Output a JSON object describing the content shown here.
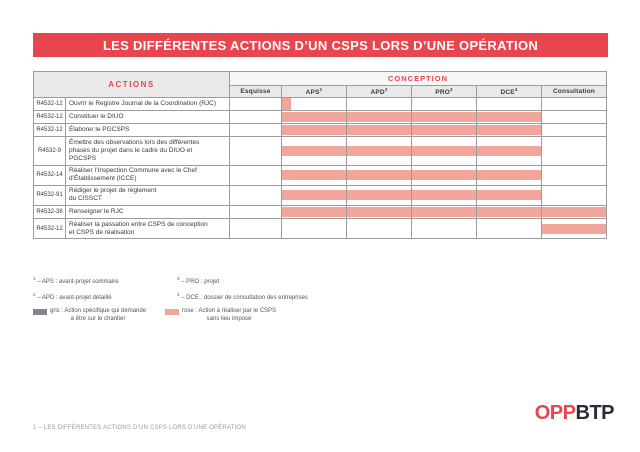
{
  "page": {
    "banner_title": "LES DIFFÉRENTES ACTIONS D’UN CSPS LORS D’UNE OPÉRATION",
    "footer_text": "1 – LES DIFFÉRENTES ACTIONS D’UN CSPS LORS D’UNE OPÉRATION",
    "logo": {
      "part1": "OPP",
      "part2": "BTP"
    }
  },
  "colors": {
    "accent_red": "#E8464F",
    "bar_pink": "#F2A59B",
    "legend_gray": "#85858D",
    "logo_dark": "#2B2A3A"
  },
  "table": {
    "actions_header": "ACTIONS",
    "conception_header": "CONCEPTION",
    "phase_columns": [
      {
        "label": "Esquisse",
        "sup": ""
      },
      {
        "label": "APS",
        "sup": "1"
      },
      {
        "label": "APD",
        "sup": "2"
      },
      {
        "label": "PRO",
        "sup": "3"
      },
      {
        "label": "DCE",
        "sup": "4"
      },
      {
        "label": "Consultation",
        "sup": ""
      }
    ],
    "rows": [
      {
        "code": "R4532-12",
        "action": "Ouvrir le Registre Journal de la Coordination (RJC)",
        "bar": {
          "from": 1,
          "to": 1,
          "small": true
        }
      },
      {
        "code": "R4532-12",
        "action": "Constituer le DIUO",
        "bar": {
          "from": 1,
          "to": 4
        }
      },
      {
        "code": "R4532-12",
        "action": "Élaborer le PGCSPS",
        "bar": {
          "from": 1,
          "to": 4
        }
      },
      {
        "code": "R4532-9",
        "action": "Émettre des observations lors des différentes\nphases du projet dans le cadre du DIUO et\nPGCSPS",
        "bar": {
          "from": 1,
          "to": 4
        }
      },
      {
        "code": "R4532-14",
        "action": "Réaliser l’Inspection Commune avec le Chef\nd’Établissement (ICCE)",
        "bar": {
          "from": 1,
          "to": 4
        }
      },
      {
        "code": "R4532-91",
        "action": "Rédiger le projet de règlement\ndu CISSCT",
        "bar": {
          "from": 1,
          "to": 4
        }
      },
      {
        "code": "R4532-38",
        "action": "Renseigner le RJC",
        "bar": {
          "from": 1,
          "to": 5
        }
      },
      {
        "code": "R4532-12",
        "action": "Réaliser la passation entre CSPS de conception\net CSPS de réalisation",
        "bar": {
          "from": 5,
          "to": 5
        }
      }
    ]
  },
  "footnotes": [
    {
      "sup": "1",
      "text": "– APS : avant-projet sommaire"
    },
    {
      "sup": "2",
      "text": "– APD : avant-projet détaillé"
    },
    {
      "sup": "3",
      "text": "– PRO : projet"
    },
    {
      "sup": "4",
      "text": "– DCE : dossier de consultation des entreprises"
    }
  ],
  "legend": [
    {
      "color_key": "legend_gray",
      "line1": "gris : Action spécifique qui demande",
      "line2": "à être sur le chantier"
    },
    {
      "color_key": "bar_pink",
      "line1": "rose : Action à réaliser par le CSPS",
      "line2": "sans lieu imposé"
    }
  ]
}
